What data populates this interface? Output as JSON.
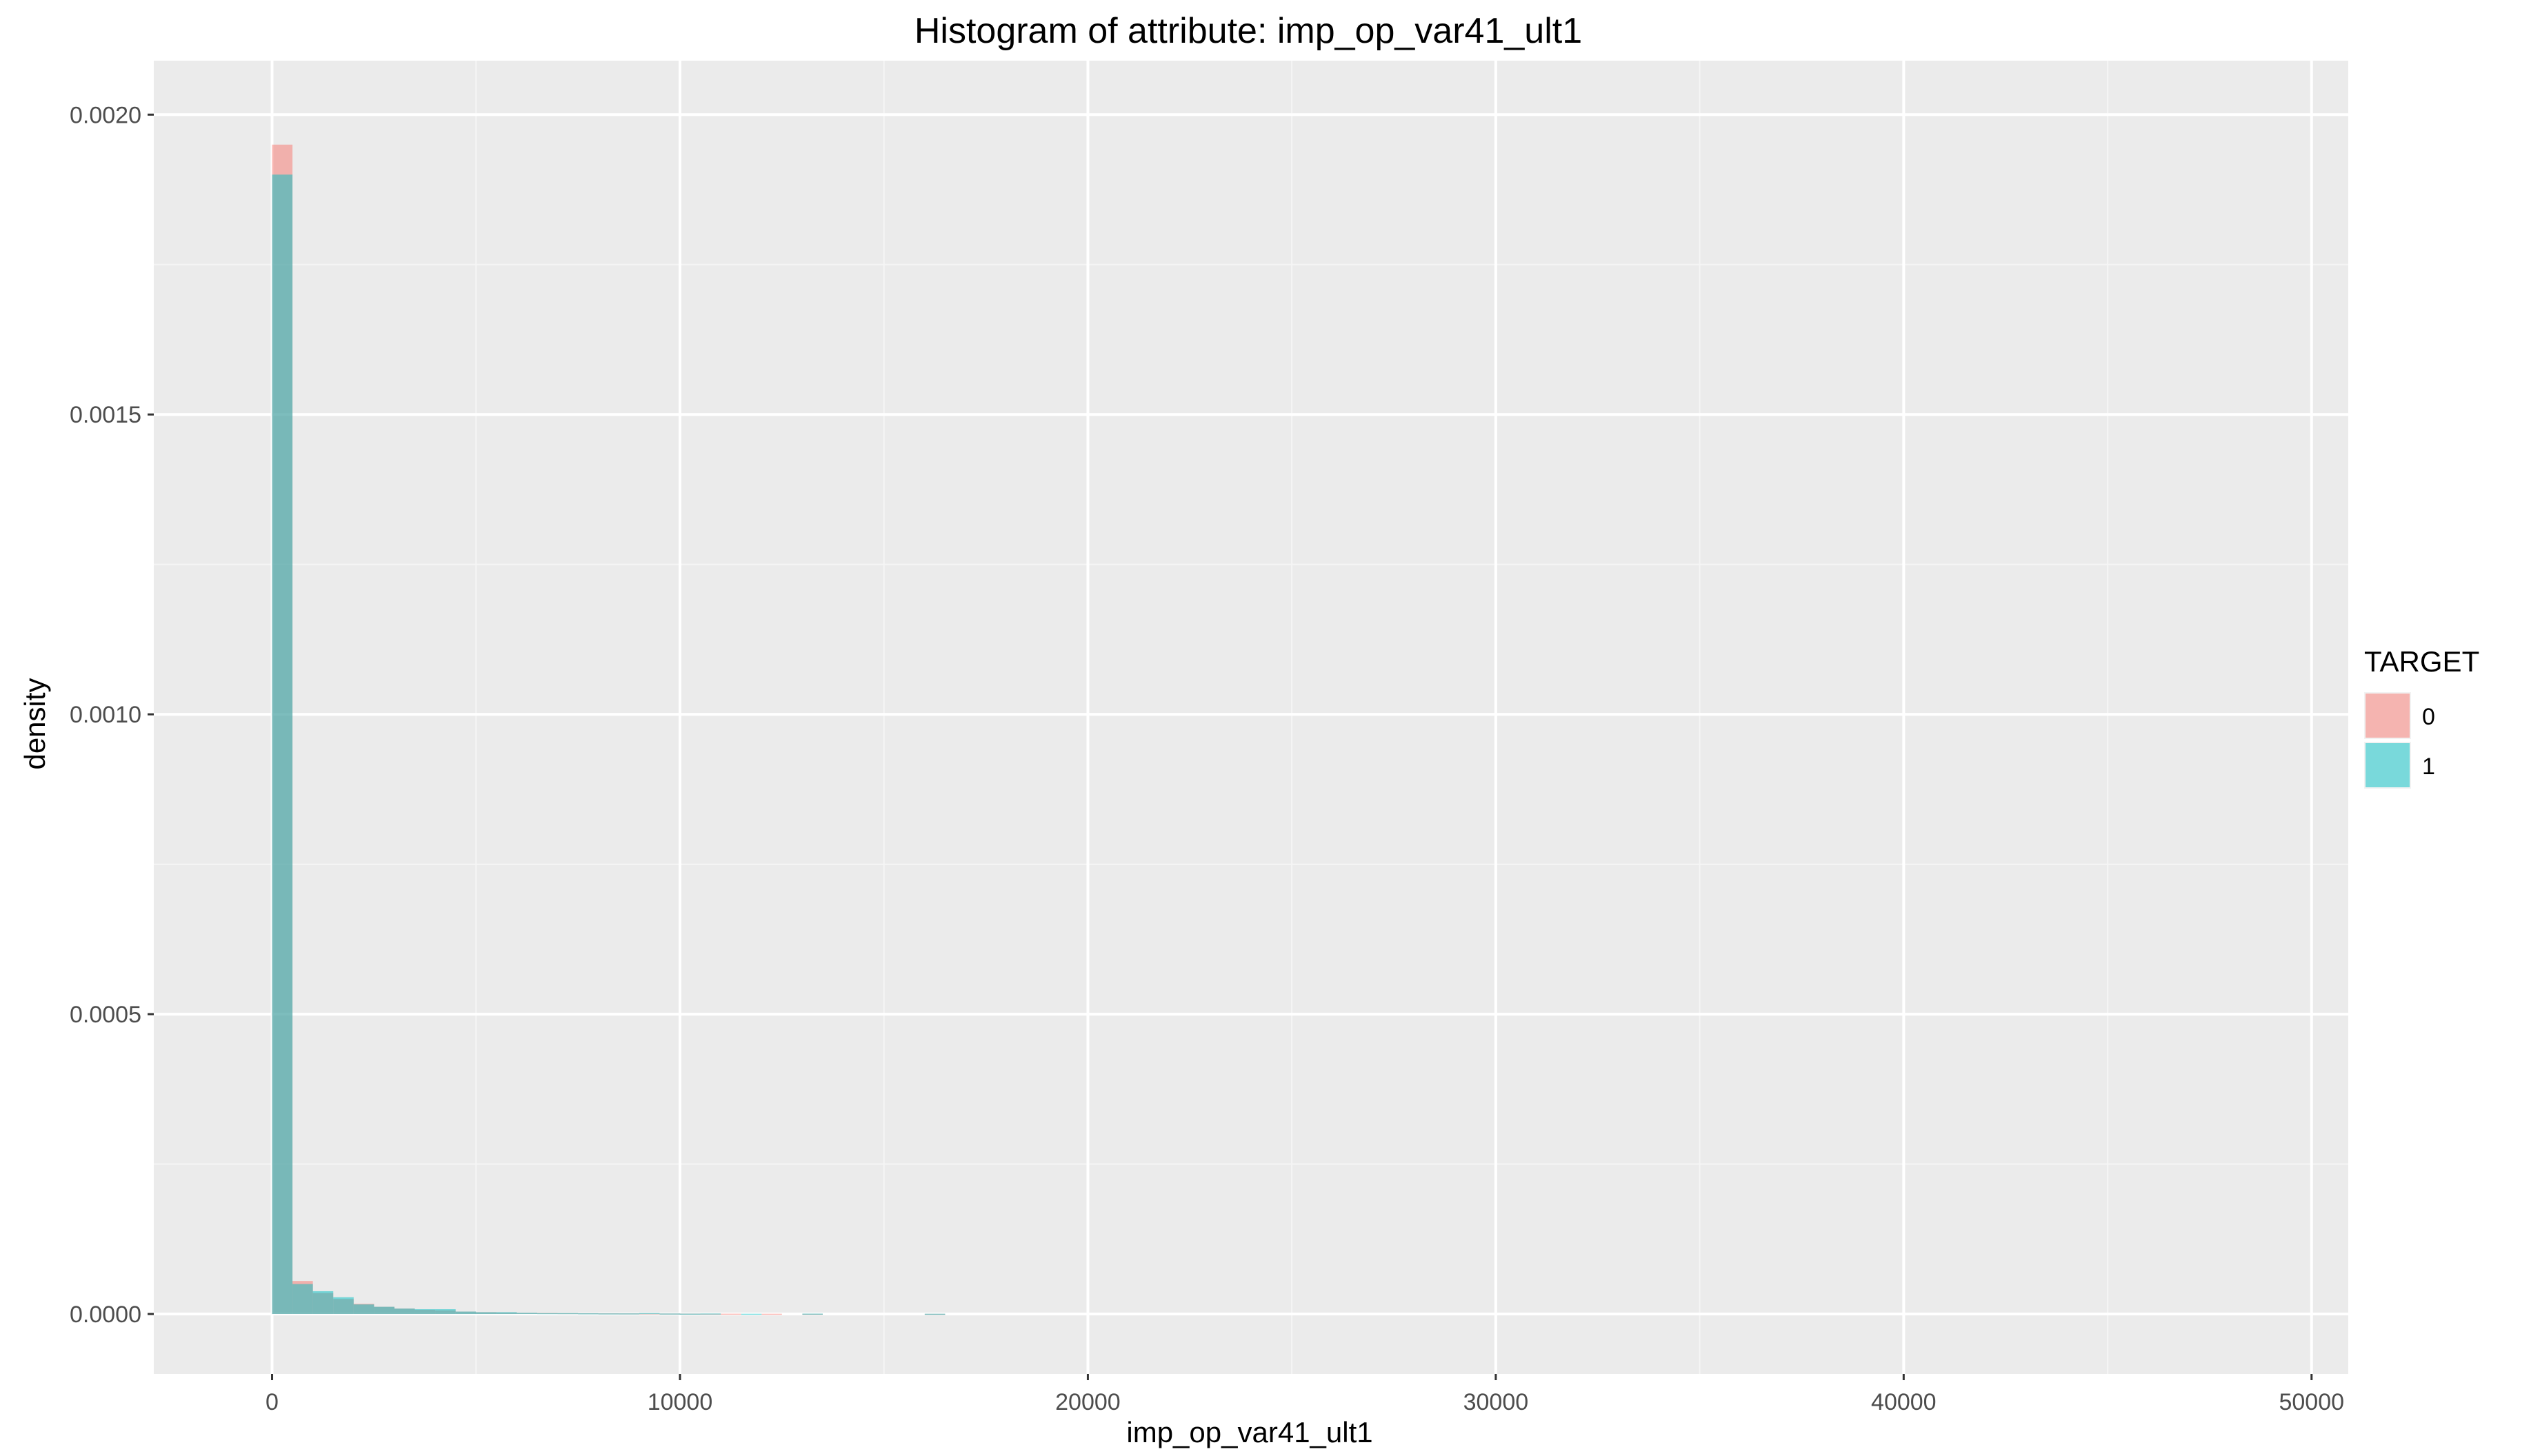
{
  "chart_data": {
    "type": "bar",
    "title": "Histogram of attribute: imp_op_var41_ult1",
    "xlabel": "imp_op_var41_ult1",
    "ylabel": "density",
    "xlim": [
      -2900,
      50900
    ],
    "ylim": [
      -0.0001,
      0.00209
    ],
    "x_ticks": [
      0,
      10000,
      20000,
      30000,
      40000,
      50000
    ],
    "x_tick_labels": [
      "0",
      "10000",
      "20000",
      "30000",
      "40000",
      "50000"
    ],
    "y_ticks": [
      0,
      0.0005,
      0.001,
      0.0015,
      0.002
    ],
    "y_tick_labels": [
      "0.0000",
      "0.0005",
      "0.0010",
      "0.0015",
      "0.0020"
    ],
    "grid": true,
    "bin_width": 500,
    "legend": {
      "title": "TARGET",
      "position": "right",
      "entries": [
        {
          "label": "0",
          "color": "#F8766D"
        },
        {
          "label": "1",
          "color": "#00BFC4"
        }
      ]
    },
    "series": [
      {
        "name": "0",
        "color": "#F8766D",
        "bins": [
          {
            "x0": 0,
            "x1": 500,
            "y": 0.00195
          },
          {
            "x0": 500,
            "x1": 1000,
            "y": 5.5e-05
          },
          {
            "x0": 1000,
            "x1": 1500,
            "y": 3.5e-05
          },
          {
            "x0": 1500,
            "x1": 2000,
            "y": 2.5e-05
          },
          {
            "x0": 2000,
            "x1": 2500,
            "y": 1.7e-05
          },
          {
            "x0": 2500,
            "x1": 3000,
            "y": 1.2e-05
          },
          {
            "x0": 3000,
            "x1": 3500,
            "y": 9e-06
          },
          {
            "x0": 3500,
            "x1": 4000,
            "y": 7e-06
          },
          {
            "x0": 4000,
            "x1": 4500,
            "y": 6e-06
          },
          {
            "x0": 4500,
            "x1": 5000,
            "y": 4e-06
          },
          {
            "x0": 5000,
            "x1": 5500,
            "y": 3e-06
          },
          {
            "x0": 5500,
            "x1": 6000,
            "y": 2.5e-06
          },
          {
            "x0": 6000,
            "x1": 6500,
            "y": 2e-06
          },
          {
            "x0": 6500,
            "x1": 7000,
            "y": 1.8e-06
          },
          {
            "x0": 7000,
            "x1": 7500,
            "y": 1.5e-06
          },
          {
            "x0": 7500,
            "x1": 8000,
            "y": 1.3e-06
          },
          {
            "x0": 8000,
            "x1": 8500,
            "y": 1.1e-06
          },
          {
            "x0": 8500,
            "x1": 9000,
            "y": 1e-06
          },
          {
            "x0": 9000,
            "x1": 9500,
            "y": 9e-07
          },
          {
            "x0": 9500,
            "x1": 10000,
            "y": 8e-07
          },
          {
            "x0": 10000,
            "x1": 10500,
            "y": 7e-07
          },
          {
            "x0": 10500,
            "x1": 11000,
            "y": 6e-07
          },
          {
            "x0": 11000,
            "x1": 11500,
            "y": 5e-07
          },
          {
            "x0": 12000,
            "x1": 12500,
            "y": 4e-07
          },
          {
            "x0": 13000,
            "x1": 13500,
            "y": 4e-07
          },
          {
            "x0": 16000,
            "x1": 16500,
            "y": 3e-07
          }
        ]
      },
      {
        "name": "1",
        "color": "#00BFC4",
        "bins": [
          {
            "x0": 0,
            "x1": 500,
            "y": 0.0019
          },
          {
            "x0": 500,
            "x1": 1000,
            "y": 5e-05
          },
          {
            "x0": 1000,
            "x1": 1500,
            "y": 3.8e-05
          },
          {
            "x0": 1500,
            "x1": 2000,
            "y": 2.8e-05
          },
          {
            "x0": 2000,
            "x1": 2500,
            "y": 1.6e-05
          },
          {
            "x0": 2500,
            "x1": 3000,
            "y": 1.2e-05
          },
          {
            "x0": 3000,
            "x1": 3500,
            "y": 9e-06
          },
          {
            "x0": 3500,
            "x1": 4000,
            "y": 8e-06
          },
          {
            "x0": 4000,
            "x1": 4500,
            "y": 8e-06
          },
          {
            "x0": 4500,
            "x1": 5000,
            "y": 4e-06
          },
          {
            "x0": 5000,
            "x1": 5500,
            "y": 3e-06
          },
          {
            "x0": 5500,
            "x1": 6000,
            "y": 3e-06
          },
          {
            "x0": 6000,
            "x1": 6500,
            "y": 2e-06
          },
          {
            "x0": 6500,
            "x1": 7000,
            "y": 1.5e-06
          },
          {
            "x0": 7000,
            "x1": 7500,
            "y": 1.5e-06
          },
          {
            "x0": 7500,
            "x1": 8000,
            "y": 1.2e-06
          },
          {
            "x0": 8000,
            "x1": 8500,
            "y": 1e-06
          },
          {
            "x0": 8500,
            "x1": 9000,
            "y": 1e-06
          },
          {
            "x0": 9000,
            "x1": 9500,
            "y": 1.5e-06
          },
          {
            "x0": 9500,
            "x1": 10000,
            "y": 8e-07
          },
          {
            "x0": 10000,
            "x1": 10500,
            "y": 6e-07
          },
          {
            "x0": 10500,
            "x1": 11000,
            "y": 8e-07
          },
          {
            "x0": 11500,
            "x1": 12000,
            "y": 4e-07
          },
          {
            "x0": 13000,
            "x1": 13500,
            "y": 6e-07
          },
          {
            "x0": 16000,
            "x1": 16500,
            "y": 4e-07
          }
        ]
      }
    ]
  }
}
